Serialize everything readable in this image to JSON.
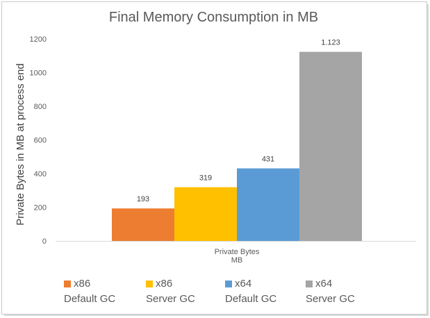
{
  "chart_data": {
    "type": "bar",
    "title": "Final Memory Consumption in MB",
    "ylabel": "Private Bytes in MB at process end",
    "xlabel": "",
    "categories": [
      "Private Bytes MB"
    ],
    "category_label_lines": [
      "Private Bytes",
      "MB"
    ],
    "ylim": [
      0,
      1200
    ],
    "yticks": [
      0,
      200,
      400,
      600,
      800,
      1000,
      1200
    ],
    "grid": false,
    "legend_position": "bottom",
    "series": [
      {
        "name": "x86 Default GC",
        "name_lines": [
          "x86",
          "Default GC"
        ],
        "values": [
          193
        ],
        "label": "193",
        "color": "#ED7D31"
      },
      {
        "name": "x86 Server GC",
        "name_lines": [
          "x86",
          "Server GC"
        ],
        "values": [
          319
        ],
        "label": "319",
        "color": "#FFC000"
      },
      {
        "name": "x64 Default GC",
        "name_lines": [
          "x64",
          "Default GC"
        ],
        "values": [
          431
        ],
        "label": "431",
        "color": "#5B9BD5"
      },
      {
        "name": "x64 Server GC",
        "name_lines": [
          "x64",
          "Server GC"
        ],
        "values": [
          1123
        ],
        "label": "1.123",
        "color": "#A5A5A5"
      }
    ],
    "axis_color": "#D9D9D9",
    "text_color": "#595959"
  }
}
